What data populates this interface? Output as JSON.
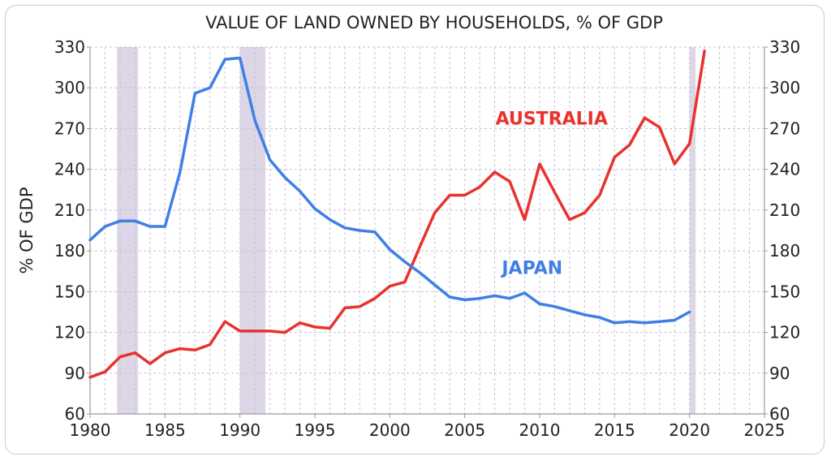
{
  "chart_data": {
    "type": "line",
    "title": "VALUE OF LAND OWNED BY HOUSEHOLDS, % OF GDP",
    "ylabel": "% OF GDP",
    "xlabel": "",
    "xlim": [
      1980,
      2025
    ],
    "ylim": [
      60,
      330
    ],
    "x_ticks": [
      1980,
      1985,
      1990,
      1995,
      2000,
      2005,
      2010,
      2015,
      2020,
      2025
    ],
    "y_ticks": [
      60,
      90,
      120,
      150,
      180,
      210,
      240,
      270,
      300,
      330
    ],
    "grid": true,
    "right_axis": true,
    "shaded_periods": [
      {
        "start": 1981.8,
        "end": 1983.2
      },
      {
        "start": 1990.0,
        "end": 1991.7
      },
      {
        "start": 2020.0,
        "end": 2020.4
      }
    ],
    "shade_color": "#ddd6e6",
    "series": [
      {
        "name": "AUSTRALIA",
        "color": "#e8322c",
        "x": [
          1980,
          1981,
          1982,
          1983,
          1984,
          1985,
          1986,
          1987,
          1988,
          1989,
          1990,
          1991,
          1992,
          1993,
          1994,
          1995,
          1996,
          1997,
          1998,
          1999,
          2000,
          2001,
          2002,
          2003,
          2004,
          2005,
          2006,
          2007,
          2008,
          2009,
          2010,
          2011,
          2012,
          2013,
          2014,
          2015,
          2016,
          2017,
          2018,
          2019,
          2020,
          2021
        ],
        "values": [
          87,
          91,
          102,
          105,
          97,
          105,
          108,
          107,
          111,
          128,
          121,
          121,
          121,
          120,
          127,
          124,
          123,
          138,
          139,
          145,
          154,
          157,
          183,
          208,
          221,
          221,
          227,
          238,
          231,
          203,
          244,
          223,
          203,
          208,
          221,
          249,
          258,
          278,
          271,
          244,
          259,
          327
        ]
      },
      {
        "name": "JAPAN",
        "color": "#3f7fe6",
        "x": [
          1980,
          1981,
          1982,
          1983,
          1984,
          1985,
          1986,
          1987,
          1988,
          1989,
          1990,
          1991,
          1992,
          1993,
          1994,
          1995,
          1996,
          1997,
          1998,
          1999,
          2000,
          2001,
          2002,
          2003,
          2004,
          2005,
          2006,
          2007,
          2008,
          2009,
          2010,
          2011,
          2012,
          2013,
          2014,
          2015,
          2016,
          2017,
          2018,
          2019,
          2020
        ],
        "values": [
          188,
          198,
          202,
          202,
          198,
          198,
          238,
          296,
          300,
          321,
          322,
          276,
          247,
          234,
          224,
          211,
          203,
          197,
          195,
          194,
          181,
          172,
          164,
          155,
          146,
          144,
          145,
          147,
          145,
          149,
          141,
          139,
          136,
          133,
          131,
          127,
          128,
          127,
          128,
          129,
          135
        ]
      }
    ],
    "annotations": [
      {
        "text": "AUSTRALIA",
        "x": 2010.8,
        "y": 273,
        "series": "AUSTRALIA"
      },
      {
        "text": "JAPAN",
        "x": 2009.5,
        "y": 163,
        "series": "JAPAN"
      }
    ]
  }
}
